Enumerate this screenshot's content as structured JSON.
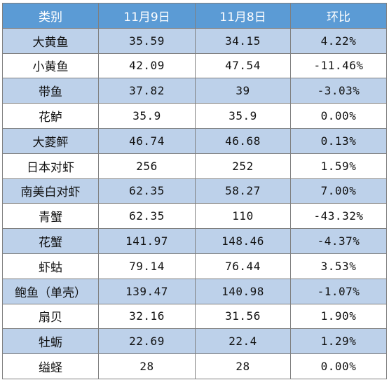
{
  "table": {
    "headers": [
      "类别",
      "11月9日",
      "11月8日",
      "环比"
    ],
    "rows": [
      {
        "name": "大黄鱼",
        "nov9": "35.59",
        "nov8": "34.15",
        "change": "4.22%"
      },
      {
        "name": "小黄鱼",
        "nov9": "42.09",
        "nov8": "47.54",
        "change": "-11.46%"
      },
      {
        "name": "带鱼",
        "nov9": "37.82",
        "nov8": "39",
        "change": "-3.03%"
      },
      {
        "name": "花鲈",
        "nov9": "35.9",
        "nov8": "35.9",
        "change": "0.00%"
      },
      {
        "name": "大菱鲆",
        "nov9": "46.74",
        "nov8": "46.68",
        "change": "0.13%"
      },
      {
        "name": "日本对虾",
        "nov9": "256",
        "nov8": "252",
        "change": "1.59%"
      },
      {
        "name": "南美白对虾",
        "nov9": "62.35",
        "nov8": "58.27",
        "change": "7.00%"
      },
      {
        "name": "青蟹",
        "nov9": "62.35",
        "nov8": "110",
        "change": "-43.32%"
      },
      {
        "name": "花蟹",
        "nov9": "141.97",
        "nov8": "148.46",
        "change": "-4.37%"
      },
      {
        "name": "虾蛄",
        "nov9": "79.14",
        "nov8": "76.44",
        "change": "3.53%"
      },
      {
        "name": "鲍鱼（单壳）",
        "nov9": "139.47",
        "nov8": "140.98",
        "change": "-1.07%"
      },
      {
        "name": "扇贝",
        "nov9": "32.16",
        "nov8": "31.56",
        "change": "1.90%"
      },
      {
        "name": "牡蛎",
        "nov9": "22.69",
        "nov8": "22.4",
        "change": "1.29%"
      },
      {
        "name": "缢蛏",
        "nov9": "28",
        "nov8": "28",
        "change": "0.00%"
      }
    ]
  },
  "colors": {
    "header_bg": "#5b9bd5",
    "header_text": "#ffffff",
    "shaded_row": "#bdd1ea",
    "plain_row": "#ffffff",
    "border": "#7f7f7f"
  }
}
